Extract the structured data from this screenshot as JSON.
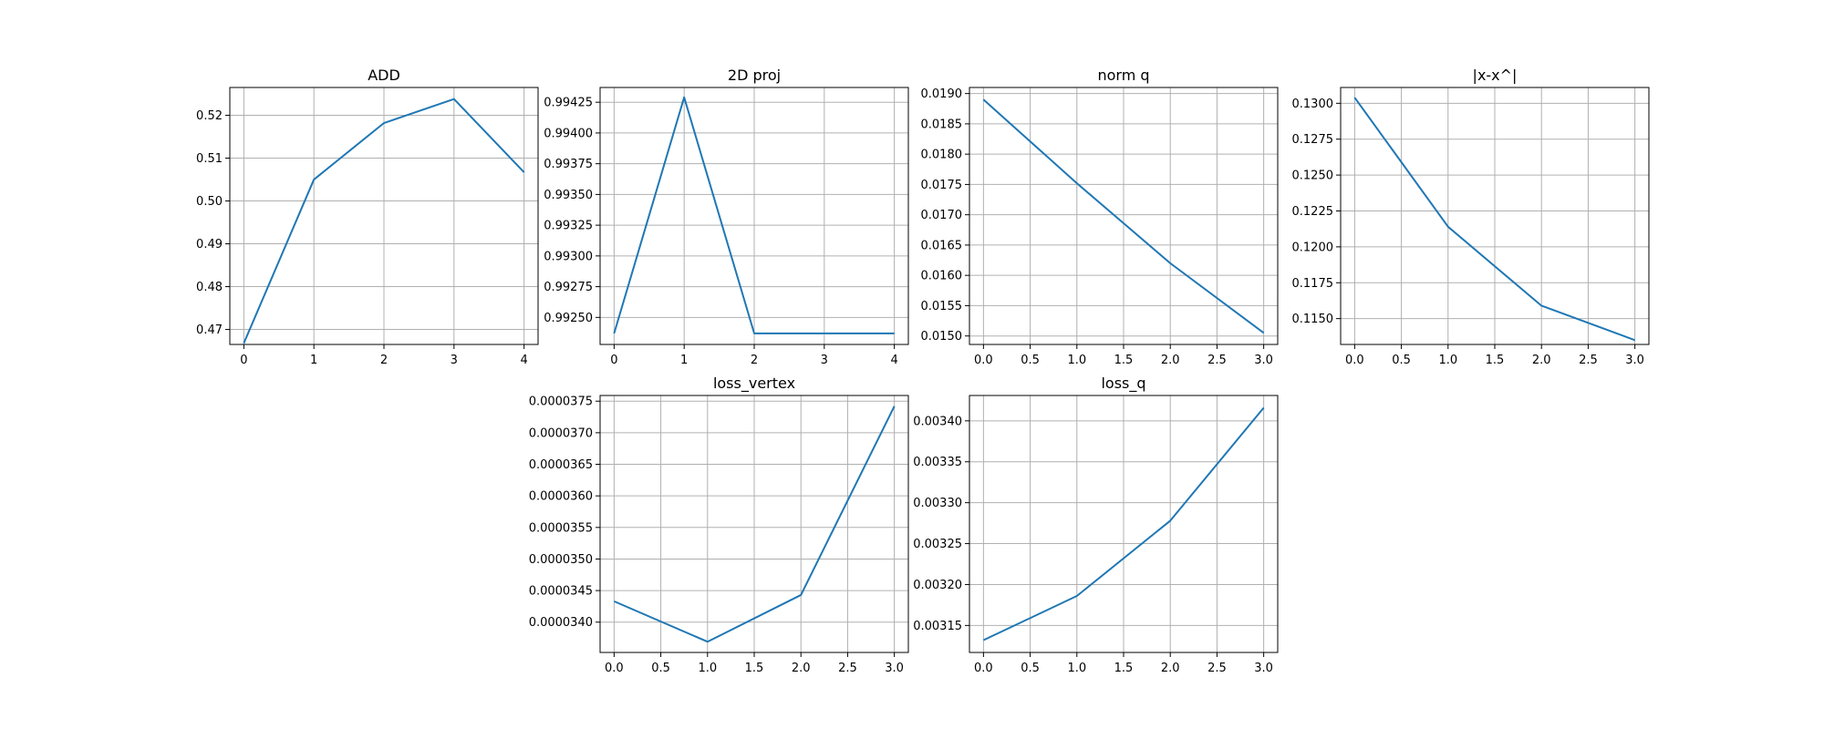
{
  "chart_data": [
    {
      "type": "line",
      "title": "ADD",
      "x": [
        0,
        1,
        2,
        3,
        4
      ],
      "y": [
        0.4668,
        0.505,
        0.5182,
        0.5238,
        0.5067
      ],
      "xlim": [
        -0.2,
        4.2
      ],
      "ylim": [
        0.4665,
        0.5265
      ],
      "xticks": [
        0,
        1,
        2,
        3,
        4
      ],
      "xtick_labels": [
        "0",
        "1",
        "2",
        "3",
        "4"
      ],
      "yticks": [
        0.47,
        0.48,
        0.49,
        0.5,
        0.51,
        0.52
      ],
      "ytick_labels": [
        "0.47",
        "0.48",
        "0.49",
        "0.50",
        "0.51",
        "0.52"
      ],
      "grid": true,
      "color": "#1f77b4"
    },
    {
      "type": "line",
      "title": "2D proj",
      "x": [
        0,
        1,
        2,
        3,
        4
      ],
      "y": [
        0.99237,
        0.99429,
        0.99237,
        0.99237,
        0.99237
      ],
      "xlim": [
        -0.2,
        4.2
      ],
      "ylim": [
        0.99228,
        0.99437
      ],
      "xticks": [
        0,
        1,
        2,
        3,
        4
      ],
      "xtick_labels": [
        "0",
        "1",
        "2",
        "3",
        "4"
      ],
      "yticks": [
        0.9925,
        0.99275,
        0.993,
        0.99325,
        0.9935,
        0.99375,
        0.994,
        0.99425
      ],
      "ytick_labels": [
        "0.99250",
        "0.99275",
        "0.99300",
        "0.99325",
        "0.99350",
        "0.99375",
        "0.99400",
        "0.99425"
      ],
      "grid": true,
      "color": "#1f77b4"
    },
    {
      "type": "line",
      "title": "norm q",
      "x": [
        0,
        1,
        2,
        3
      ],
      "y": [
        0.0189,
        0.01752,
        0.0162,
        0.01505
      ],
      "xlim": [
        -0.15,
        3.15
      ],
      "ylim": [
        0.01486,
        0.0191
      ],
      "xticks": [
        0,
        0.5,
        1,
        1.5,
        2,
        2.5,
        3
      ],
      "xtick_labels": [
        "0.0",
        "0.5",
        "1.0",
        "1.5",
        "2.0",
        "2.5",
        "3.0"
      ],
      "yticks": [
        0.015,
        0.0155,
        0.016,
        0.0165,
        0.017,
        0.0175,
        0.018,
        0.0185,
        0.019
      ],
      "ytick_labels": [
        "0.0150",
        "0.0155",
        "0.0160",
        "0.0165",
        "0.0170",
        "0.0175",
        "0.0180",
        "0.0185",
        "0.0190"
      ],
      "grid": true,
      "color": "#1f77b4"
    },
    {
      "type": "line",
      "title": "|x-x^|",
      "x": [
        0,
        1,
        2,
        3
      ],
      "y": [
        0.1304,
        0.1214,
        0.1159,
        0.1135
      ],
      "xlim": [
        -0.15,
        3.15
      ],
      "ylim": [
        0.1132,
        0.1311
      ],
      "xticks": [
        0,
        0.5,
        1,
        1.5,
        2,
        2.5,
        3
      ],
      "xtick_labels": [
        "0.0",
        "0.5",
        "1.0",
        "1.5",
        "2.0",
        "2.5",
        "3.0"
      ],
      "yticks": [
        0.115,
        0.1175,
        0.12,
        0.1225,
        0.125,
        0.1275,
        0.13
      ],
      "ytick_labels": [
        "0.1150",
        "0.1175",
        "0.1200",
        "0.1225",
        "0.1250",
        "0.1275",
        "0.1300"
      ],
      "grid": true,
      "color": "#1f77b4"
    },
    {
      "type": "line",
      "title": "loss_vertex",
      "x": [
        0,
        1,
        2,
        3
      ],
      "y": [
        3.433e-05,
        3.369e-05,
        3.443e-05,
        3.742e-05
      ],
      "xlim": [
        -0.15,
        3.15
      ],
      "ylim": [
        3.352e-05,
        3.759e-05
      ],
      "xticks": [
        0,
        0.5,
        1,
        1.5,
        2,
        2.5,
        3
      ],
      "xtick_labels": [
        "0.0",
        "0.5",
        "1.0",
        "1.5",
        "2.0",
        "2.5",
        "3.0"
      ],
      "yticks": [
        3.4e-05,
        3.45e-05,
        3.5e-05,
        3.55e-05,
        3.6e-05,
        3.65e-05,
        3.7e-05,
        3.75e-05
      ],
      "ytick_labels": [
        "0.0000340",
        "0.0000345",
        "0.0000350",
        "0.0000355",
        "0.0000360",
        "0.0000365",
        "0.0000370",
        "0.0000375"
      ],
      "grid": true,
      "color": "#1f77b4"
    },
    {
      "type": "line",
      "title": "loss_q",
      "x": [
        0,
        1,
        2,
        3
      ],
      "y": [
        0.003132,
        0.003186,
        0.003278,
        0.003416
      ],
      "xlim": [
        -0.15,
        3.15
      ],
      "ylim": [
        0.003117,
        0.003431
      ],
      "xticks": [
        0,
        0.5,
        1,
        1.5,
        2,
        2.5,
        3
      ],
      "xtick_labels": [
        "0.0",
        "0.5",
        "1.0",
        "1.5",
        "2.0",
        "2.5",
        "3.0"
      ],
      "yticks": [
        0.00315,
        0.0032,
        0.00325,
        0.0033,
        0.00335,
        0.0034
      ],
      "ytick_labels": [
        "0.00315",
        "0.00320",
        "0.00325",
        "0.00330",
        "0.00335",
        "0.00340"
      ],
      "grid": true,
      "color": "#1f77b4"
    }
  ]
}
